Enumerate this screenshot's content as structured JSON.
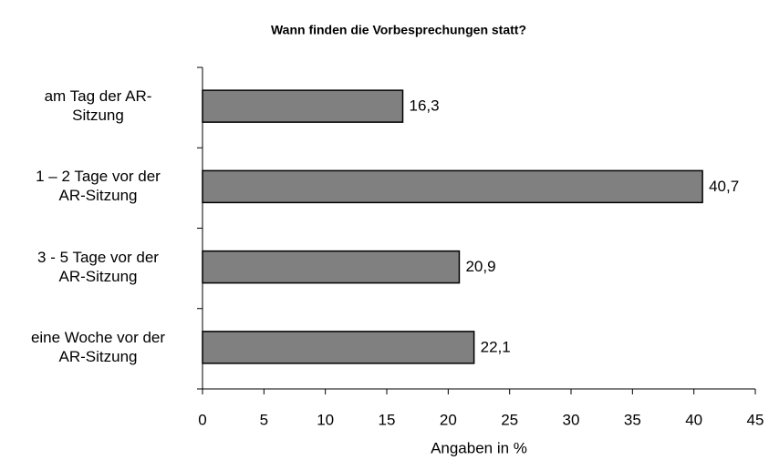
{
  "chart_data": {
    "type": "barh",
    "title": "Wann finden die Vorbesprechungen statt?",
    "categories": [
      "am Tag der AR-\nSitzung",
      "1 – 2 Tage vor der\nAR-Sitzung",
      "3 - 5 Tage vor der\nAR-Sitzung",
      "eine Woche vor der\nAR-Sitzung"
    ],
    "values": [
      16.3,
      40.7,
      20.9,
      22.1
    ],
    "value_labels": [
      "16,3",
      "40,7",
      "20,9",
      "22,1"
    ],
    "color": "#808080",
    "x_label": "Angaben in %",
    "xlim": [
      0,
      45
    ],
    "xticks": [
      0,
      5,
      10,
      15,
      20,
      25,
      30,
      35,
      40,
      45
    ]
  }
}
